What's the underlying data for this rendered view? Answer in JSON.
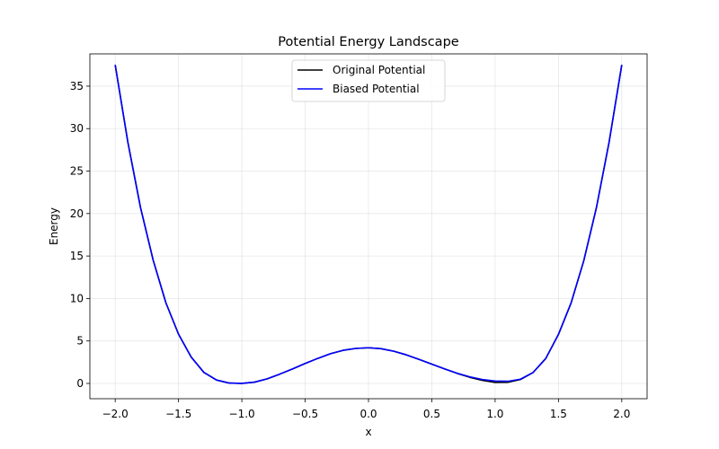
{
  "chart_data": {
    "type": "line",
    "title": "Potential Energy Landscape",
    "xlabel": "x",
    "ylabel": "Energy",
    "xlim": [
      -2.2,
      2.2
    ],
    "ylim": [
      -1.8,
      38.8
    ],
    "xticks": [
      -2.0,
      -1.5,
      -1.0,
      -0.5,
      0.0,
      0.5,
      1.0,
      1.5,
      2.0
    ],
    "xtick_labels": [
      "−2.0",
      "−1.5",
      "−1.0",
      "−0.5",
      "0.0",
      "0.5",
      "1.0",
      "1.5",
      "2.0"
    ],
    "yticks": [
      0,
      5,
      10,
      15,
      20,
      25,
      30,
      35
    ],
    "ytick_labels": [
      "0",
      "5",
      "10",
      "15",
      "20",
      "25",
      "30",
      "35"
    ],
    "grid": true,
    "legend_position": "top-center",
    "x": [
      -2.0,
      -1.9,
      -1.8,
      -1.7,
      -1.6,
      -1.5,
      -1.4,
      -1.3,
      -1.2,
      -1.1,
      -1.0,
      -0.9,
      -0.8,
      -0.7,
      -0.6,
      -0.5,
      -0.4,
      -0.3,
      -0.2,
      -0.1,
      0.0,
      0.1,
      0.2,
      0.3,
      0.4,
      0.5,
      0.6,
      0.7,
      0.8,
      0.9,
      1.0,
      1.1,
      1.2,
      1.3,
      1.4,
      1.5,
      1.6,
      1.7,
      1.8,
      1.9,
      2.0
    ],
    "series": [
      {
        "name": "Original Potential",
        "color": "#000000",
        "values": [
          37.5,
          28.4,
          20.7,
          14.5,
          9.5,
          5.8,
          3.1,
          1.3,
          0.4,
          0.04,
          0.0,
          0.15,
          0.54,
          1.1,
          1.7,
          2.35,
          2.95,
          3.5,
          3.9,
          4.12,
          4.2,
          4.09,
          3.79,
          3.36,
          2.83,
          2.27,
          1.72,
          1.18,
          0.72,
          0.36,
          0.12,
          0.13,
          0.46,
          1.29,
          2.94,
          5.77,
          9.48,
          14.45,
          20.71,
          28.41,
          37.5
        ]
      },
      {
        "name": "Biased Potential",
        "color": "#0000ff",
        "values": [
          37.5,
          28.4,
          20.7,
          14.5,
          9.5,
          5.8,
          3.1,
          1.3,
          0.4,
          0.04,
          0.0,
          0.15,
          0.54,
          1.1,
          1.7,
          2.35,
          2.95,
          3.5,
          3.9,
          4.12,
          4.2,
          4.09,
          3.79,
          3.36,
          2.83,
          2.27,
          1.72,
          1.2,
          0.78,
          0.46,
          0.28,
          0.25,
          0.5,
          1.29,
          2.94,
          5.77,
          9.48,
          14.45,
          20.71,
          28.41,
          37.5
        ]
      }
    ]
  }
}
